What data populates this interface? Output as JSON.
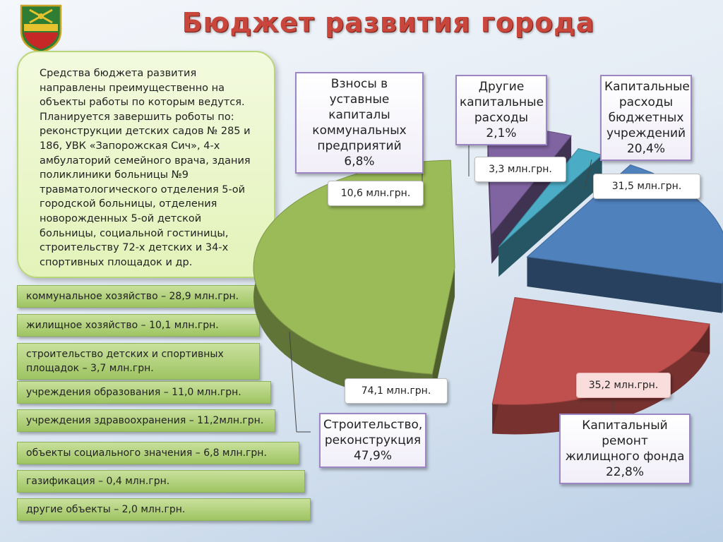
{
  "title": "Бюджет развития города",
  "info_lines": [
    "Средства бюджета развития",
    "направлены преимущественно на",
    "объекты работы по которым ведутся.",
    "Планируется завершить роботы по:",
    "реконструкции детских садов № 285 и",
    "186, УВК «Запорожская Сич», 4-х",
    "амбулаторий семейного врача, здания",
    "поликлиники больницы №9",
    "травматологического отделения 5-ой",
    "городской больницы, отделения",
    "новорожденных 5-ой детской",
    "больницы, социальной гостиницы,",
    "строительству 72-х детских и 34-х",
    "спортивных площадок и др."
  ],
  "categories": [
    "коммунальное хозяйство – 28,9 млн.грн.",
    "жилищное хозяйство – 10,1 млн.грн.",
    "строительство детских и спортивных площадок – 3,7 млн.грн.",
    "учреждения образования – 11,0 млн.грн.",
    "учреждения здравоохранения – 11,2млн.грн.",
    "объекты социального значения – 6,8 млн.грн.",
    "газификация – 0,4 млн.грн.",
    "другие объекты – 2,0 млн.грн."
  ],
  "chart_data": {
    "type": "pie",
    "title": "Бюджет развития города",
    "unit": "млн.грн.",
    "slices": [
      {
        "label": "Строительство, реконструкция",
        "percent": 47.9,
        "value": 74.1,
        "percent_text": "47,9%",
        "value_text": "74,1 млн.грн.",
        "color": "#9bbb59"
      },
      {
        "label": "Взносы в уставные капиталы коммунальных предприятий",
        "percent": 6.8,
        "value": 10.6,
        "percent_text": "6,8%",
        "value_text": "10,6 млн.грн.",
        "color": "#8064a2"
      },
      {
        "label": "Другие капитальные расходы",
        "percent": 2.1,
        "value": 3.3,
        "percent_text": "2,1%",
        "value_text": "3,3 млн.грн.",
        "color": "#4bacc6"
      },
      {
        "label": "Капитальные расходы бюджетных учреждений",
        "percent": 20.4,
        "value": 31.5,
        "percent_text": "20,4%",
        "value_text": "31,5 млн.грн.",
        "color": "#4f81bd"
      },
      {
        "label": "Капитальный ремонт жилищного фонда",
        "percent": 22.8,
        "value": 35.2,
        "percent_text": "22,8%",
        "value_text": "35,2 млн.грн.",
        "color": "#c0504d"
      }
    ]
  }
}
